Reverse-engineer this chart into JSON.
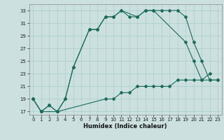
{
  "xlabel": "Humidex (Indice chaleur)",
  "bg_color": "#cce0e0",
  "grid_color": "#aacccc",
  "line_color": "#1a6b5a",
  "xlim": [
    -0.5,
    23.5
  ],
  "ylim": [
    16.5,
    34
  ],
  "xticks": [
    0,
    1,
    2,
    3,
    4,
    5,
    6,
    7,
    8,
    9,
    10,
    11,
    12,
    13,
    14,
    15,
    16,
    17,
    18,
    19,
    20,
    21,
    22,
    23
  ],
  "yticks": [
    17,
    19,
    21,
    23,
    25,
    27,
    29,
    31,
    33
  ],
  "line1_x": [
    0,
    1,
    2,
    3,
    4,
    5,
    7,
    8,
    9,
    10,
    11,
    12,
    13,
    14,
    15,
    16,
    17,
    18,
    19,
    20,
    21,
    22,
    23
  ],
  "line1_y": [
    19,
    17,
    18,
    17,
    19,
    24,
    30,
    30,
    32,
    32,
    33,
    32,
    32,
    33,
    33,
    33,
    33,
    33,
    32,
    28,
    25,
    22,
    22
  ],
  "line2_x": [
    0,
    1,
    2,
    3,
    4,
    5,
    7,
    8,
    9,
    10,
    11,
    13,
    14,
    15,
    19,
    20,
    21,
    22
  ],
  "line2_y": [
    19,
    17,
    18,
    17,
    19,
    24,
    30,
    30,
    32,
    32,
    33,
    32,
    33,
    33,
    28,
    25,
    22,
    23
  ],
  "line3_x": [
    0,
    1,
    3,
    9,
    10,
    11,
    12,
    13,
    14,
    15,
    16,
    17,
    18,
    19,
    20,
    21,
    22,
    23
  ],
  "line3_y": [
    19,
    17,
    17,
    19,
    19,
    20,
    20,
    21,
    21,
    21,
    21,
    21,
    22,
    22,
    22,
    22,
    22,
    22
  ]
}
